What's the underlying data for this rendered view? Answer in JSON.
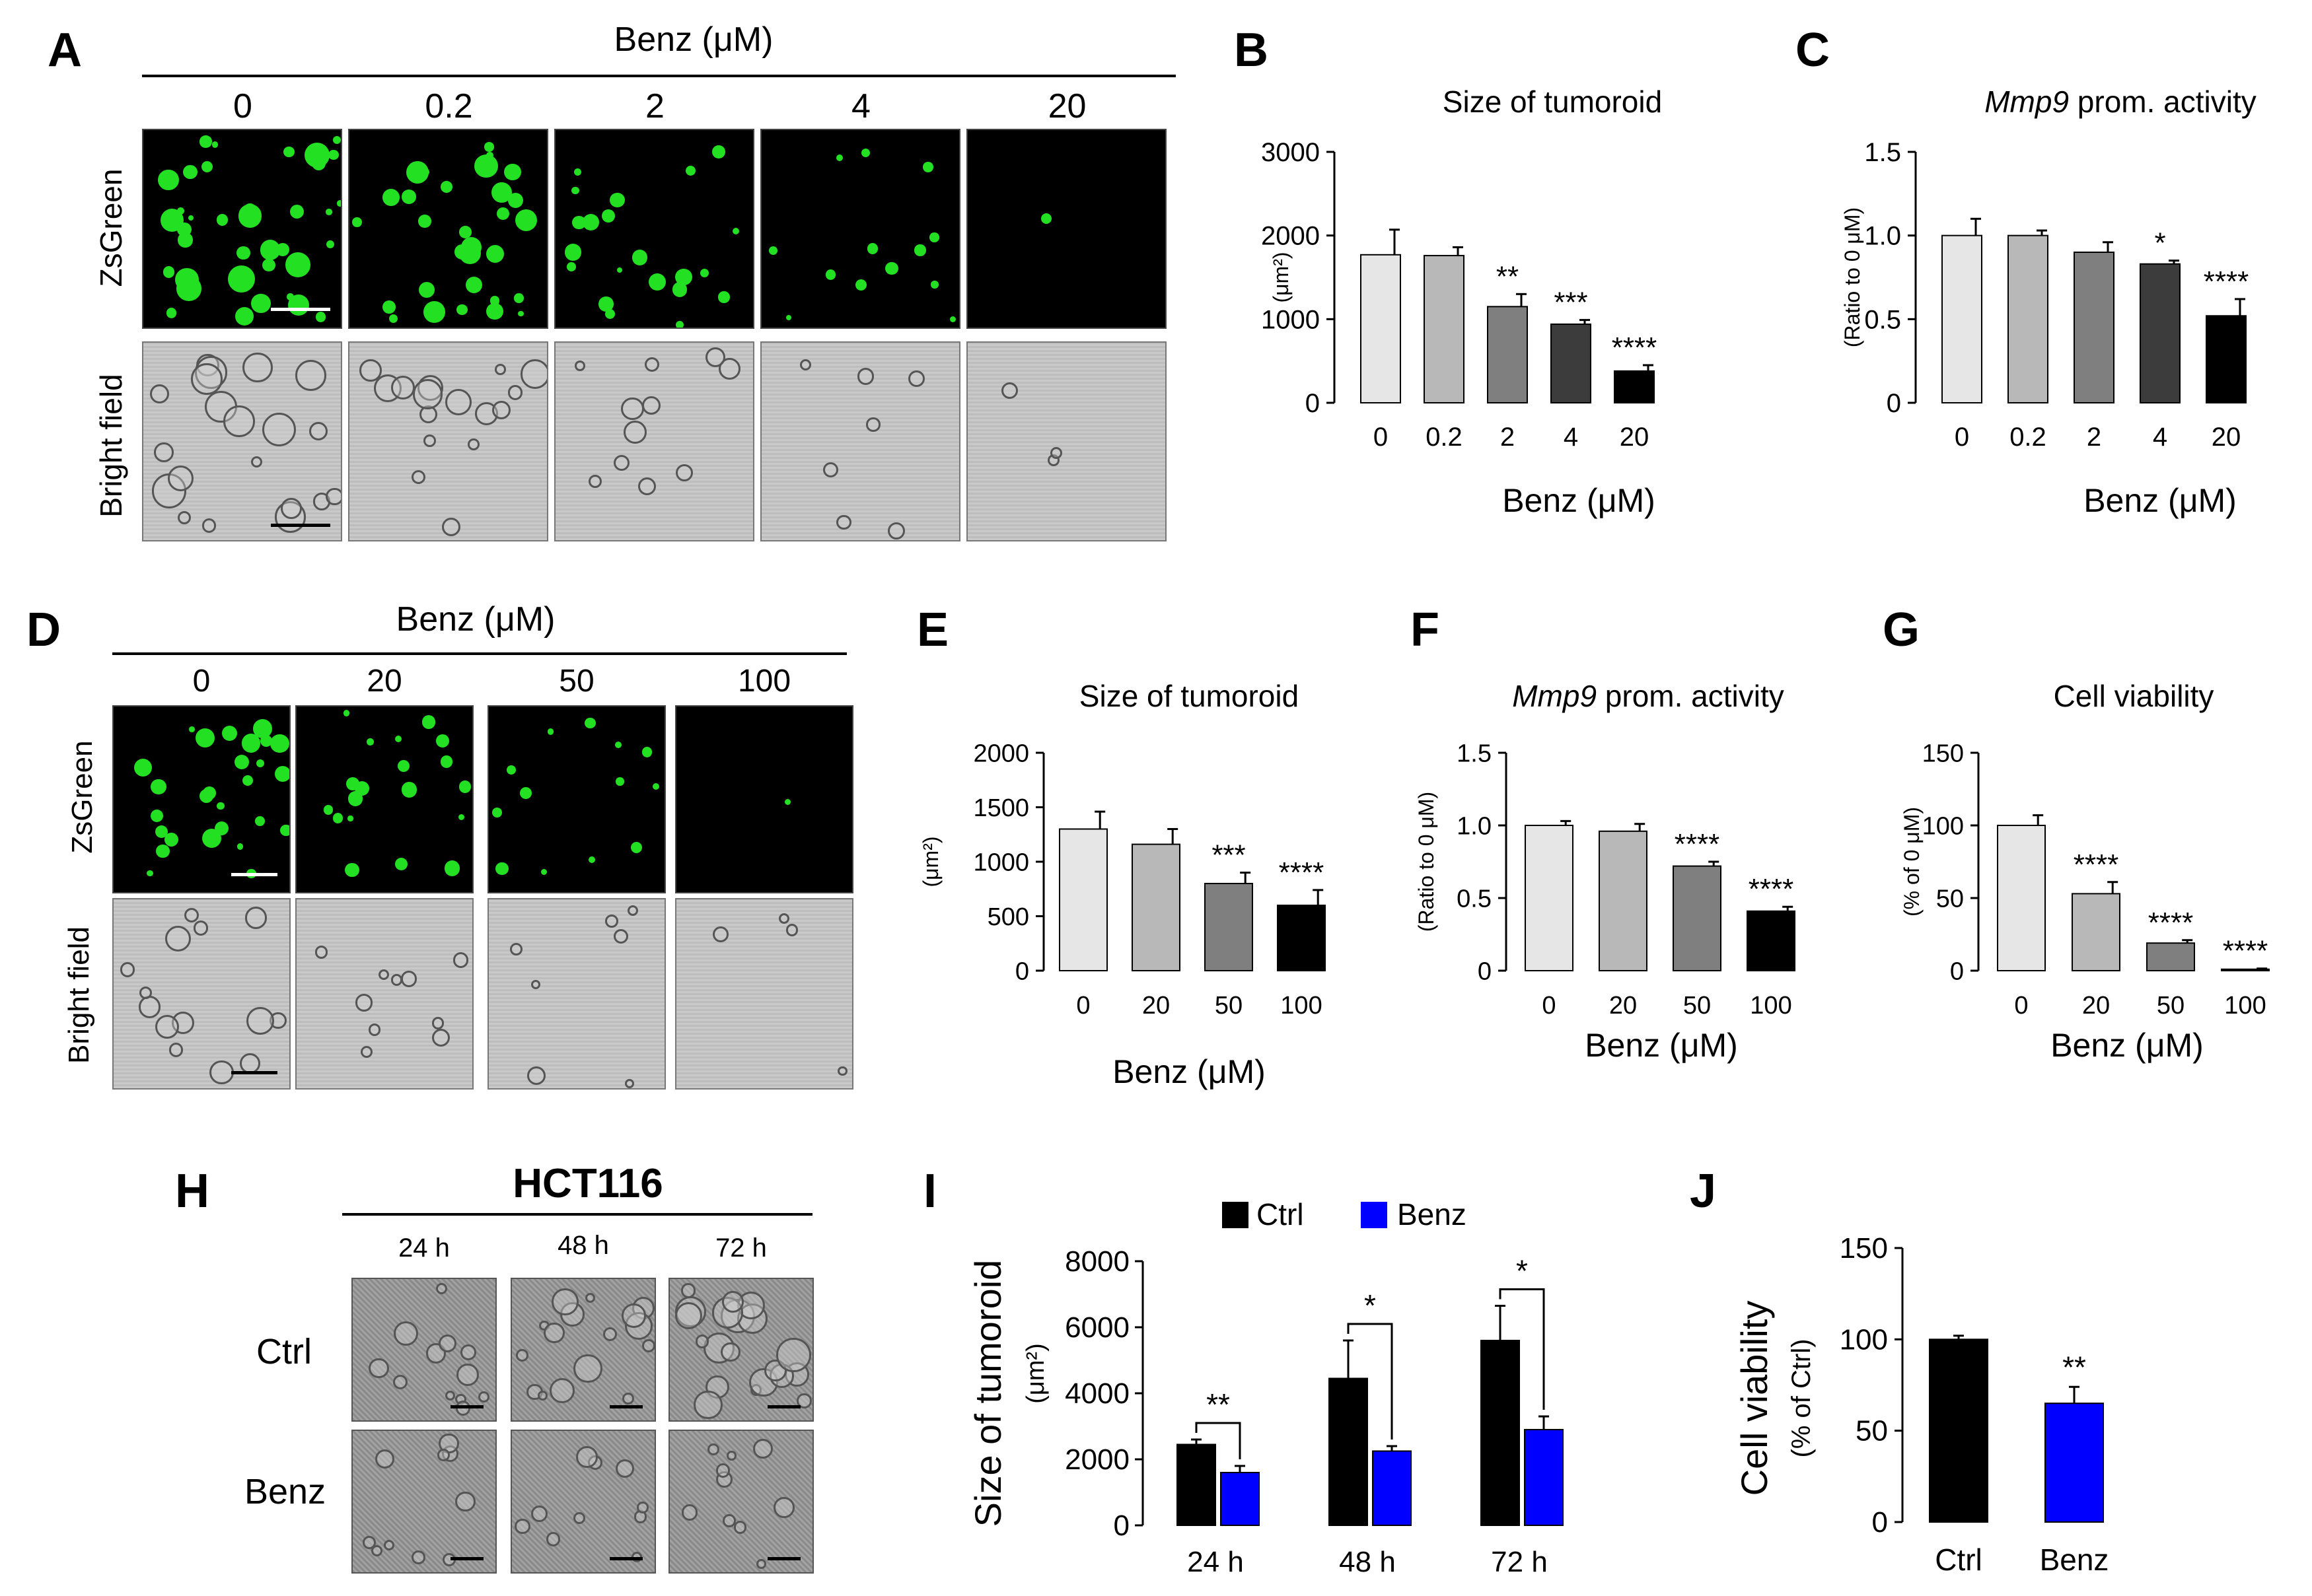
{
  "panel_letters": [
    "A",
    "B",
    "C",
    "D",
    "E",
    "F",
    "G",
    "H",
    "I",
    "J"
  ],
  "panelA": {
    "header": "Benz (μM)",
    "columns": [
      "0",
      "0.2",
      "2",
      "4",
      "20"
    ],
    "row_labels": [
      "ZsGreen",
      "Bright field"
    ],
    "green_density": [
      1.0,
      0.8,
      0.55,
      0.35,
      0.02
    ]
  },
  "panelD": {
    "header": "Benz (μM)",
    "columns": [
      "0",
      "20",
      "50",
      "100"
    ],
    "row_labels": [
      "ZsGreen",
      "Bright field"
    ],
    "green_density": [
      0.7,
      0.5,
      0.35,
      0.03
    ]
  },
  "panelH": {
    "header": "HCT116",
    "columns": [
      "24 h",
      "48 h",
      "72 h"
    ],
    "row_labels": [
      "Ctrl",
      "Benz"
    ]
  },
  "colors": {
    "green": "#23e023",
    "blue": "#0000ff",
    "black": "#000000"
  },
  "chart_data": [
    {
      "panel": "B",
      "type": "bar",
      "title": "Size of tumoroid",
      "xlabel": "Benz (μM)",
      "ylabel": "(μm²)",
      "categories": [
        "0",
        "0.2",
        "2",
        "4",
        "20"
      ],
      "values": [
        1770,
        1760,
        1150,
        940,
        380
      ],
      "errors": [
        300,
        100,
        150,
        50,
        70
      ],
      "significance": [
        "",
        "",
        "**",
        "***",
        "****"
      ],
      "bar_colors": [
        "#e6e6e6",
        "#b8b8b8",
        "#7f7f7f",
        "#3c3c3c",
        "#000000"
      ],
      "ylim": [
        0,
        3000
      ],
      "yticks": [
        "0",
        "1000",
        "2000",
        "3000"
      ]
    },
    {
      "panel": "C",
      "type": "bar",
      "title": "Mmp9 prom. activity",
      "title_italic": "Mmp9",
      "title_rest": " prom. activity",
      "xlabel": "Benz (μM)",
      "ylabel": "(Ratio to 0 μM)",
      "categories": [
        "0",
        "0.2",
        "2",
        "4",
        "20"
      ],
      "values": [
        1.0,
        1.0,
        0.9,
        0.83,
        0.52
      ],
      "errors": [
        0.1,
        0.03,
        0.06,
        0.02,
        0.1
      ],
      "significance": [
        "",
        "",
        "",
        "*",
        "****"
      ],
      "bar_colors": [
        "#e6e6e6",
        "#b8b8b8",
        "#7f7f7f",
        "#3c3c3c",
        "#000000"
      ],
      "ylim": [
        0,
        1.5
      ],
      "yticks": [
        "0",
        "0.5",
        "1.0",
        "1.5"
      ]
    },
    {
      "panel": "E",
      "type": "bar",
      "title": "Size of tumoroid",
      "xlabel": "Benz (μM)",
      "ylabel": "(μm²)",
      "categories": [
        "0",
        "20",
        "50",
        "100"
      ],
      "values": [
        1300,
        1160,
        800,
        600
      ],
      "errors": [
        160,
        140,
        100,
        140
      ],
      "significance": [
        "",
        "",
        "***",
        "****"
      ],
      "bar_colors": [
        "#e6e6e6",
        "#b8b8b8",
        "#7f7f7f",
        "#000000"
      ],
      "ylim": [
        0,
        2000
      ],
      "yticks": [
        "0",
        "500",
        "1000",
        "1500",
        "2000"
      ]
    },
    {
      "panel": "F",
      "type": "bar",
      "title": "Mmp9 prom. activity",
      "title_italic": "Mmp9",
      "title_rest": " prom. activity",
      "xlabel": "Benz (μM)",
      "ylabel": "(Ratio to 0 μM)",
      "categories": [
        "0",
        "20",
        "50",
        "100"
      ],
      "values": [
        1.0,
        0.96,
        0.72,
        0.41
      ],
      "errors": [
        0.03,
        0.05,
        0.03,
        0.03
      ],
      "significance": [
        "",
        "",
        "****",
        "****"
      ],
      "bar_colors": [
        "#e6e6e6",
        "#b8b8b8",
        "#7f7f7f",
        "#000000"
      ],
      "ylim": [
        0,
        1.5
      ],
      "yticks": [
        "0",
        "0.5",
        "1.0",
        "1.5"
      ]
    },
    {
      "panel": "G",
      "type": "bar",
      "title": "Cell viability",
      "xlabel": "Benz (μM)",
      "ylabel": "(% of 0 μM)",
      "categories": [
        "0",
        "20",
        "50",
        "100"
      ],
      "values": [
        100,
        53,
        19,
        1
      ],
      "errors": [
        7,
        8,
        2,
        0.5
      ],
      "significance": [
        "",
        "****",
        "****",
        "****"
      ],
      "bar_colors": [
        "#e6e6e6",
        "#b8b8b8",
        "#7f7f7f",
        "#000000"
      ],
      "ylim": [
        0,
        150
      ],
      "yticks": [
        "0",
        "50",
        "100",
        "150"
      ]
    },
    {
      "panel": "I",
      "type": "bar",
      "title": "",
      "xlabel": "",
      "ylabel": "Size of tumoroid",
      "ylabel2": "(μm²)",
      "categories": [
        "24 h",
        "48 h",
        "72 h"
      ],
      "series": [
        {
          "name": "Ctrl",
          "color": "#000000",
          "values": [
            2450,
            4450,
            5600
          ],
          "errors": [
            150,
            1150,
            1050
          ]
        },
        {
          "name": "Benz",
          "color": "#0000ff",
          "values": [
            1600,
            2250,
            2900
          ],
          "errors": [
            200,
            150,
            400
          ]
        }
      ],
      "significance": [
        "**",
        "*",
        "*"
      ],
      "ylim": [
        0,
        8000
      ],
      "yticks": [
        "0",
        "2000",
        "4000",
        "6000",
        "8000"
      ]
    },
    {
      "panel": "J",
      "type": "bar",
      "title": "",
      "xlabel": "",
      "ylabel": "Cell viability",
      "ylabel2": "(% of  Ctrl)",
      "categories": [
        "Ctrl",
        "Benz"
      ],
      "values": [
        100,
        65
      ],
      "errors": [
        2,
        9
      ],
      "significance": [
        "",
        "**"
      ],
      "bar_colors": [
        "#000000",
        "#0000ff"
      ],
      "ylim": [
        0,
        150
      ],
      "yticks": [
        "0",
        "50",
        "100",
        "150"
      ]
    }
  ]
}
